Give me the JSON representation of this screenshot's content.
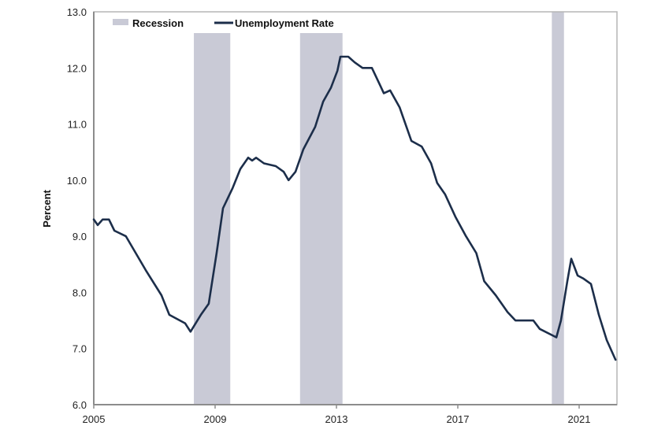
{
  "chart_data": {
    "type": "line",
    "title": "",
    "xlabel": "",
    "ylabel": "Percent",
    "ylim": [
      6.0,
      13.0
    ],
    "xlim": [
      2005,
      2022.2
    ],
    "yticks": [
      "6.0",
      "7.0",
      "8.0",
      "9.0",
      "10.0",
      "11.0",
      "12.0",
      "13.0"
    ],
    "xticks": [
      "2005",
      "2009",
      "2013",
      "2017",
      "2021"
    ],
    "grid": false,
    "legend": {
      "position": "top-left",
      "entries": [
        {
          "label": "Recession",
          "type": "area",
          "color": "#c9cad6"
        },
        {
          "label": "Unemployment Rate",
          "type": "line",
          "color": "#1c2e4a"
        }
      ]
    },
    "recessions": [
      {
        "start": 2008.3,
        "end": 2009.5
      },
      {
        "start": 2011.8,
        "end": 2013.2
      },
      {
        "start": 2020.1,
        "end": 2020.5
      }
    ],
    "series": [
      {
        "name": "Unemployment Rate",
        "color": "#1c2e4a",
        "x": [
          2005.0,
          2005.13,
          2005.29,
          2005.5,
          2005.68,
          2006.06,
          2006.71,
          2007.23,
          2007.49,
          2008.01,
          2008.19,
          2008.53,
          2008.79,
          2009.05,
          2009.26,
          2009.57,
          2009.83,
          2010.09,
          2010.22,
          2010.35,
          2010.61,
          2011.0,
          2011.26,
          2011.42,
          2011.65,
          2011.91,
          2012.3,
          2012.56,
          2012.82,
          2013.03,
          2013.13,
          2013.39,
          2013.6,
          2013.86,
          2014.17,
          2014.43,
          2014.56,
          2014.77,
          2015.08,
          2015.47,
          2015.81,
          2016.12,
          2016.32,
          2016.58,
          2016.92,
          2017.27,
          2017.61,
          2017.87,
          2018.25,
          2018.64,
          2018.9,
          2019.49,
          2019.7,
          2020.25,
          2020.4,
          2020.61,
          2020.74,
          2020.95,
          2021.13,
          2021.39,
          2021.65,
          2021.91,
          2022.2
        ],
        "values": [
          9.3,
          9.2,
          9.3,
          9.3,
          9.1,
          9.0,
          8.4,
          7.95,
          7.6,
          7.45,
          7.3,
          7.6,
          7.8,
          8.7,
          9.5,
          9.85,
          10.2,
          10.4,
          10.35,
          10.4,
          10.3,
          10.25,
          10.15,
          10.0,
          10.15,
          10.55,
          10.95,
          11.4,
          11.65,
          11.95,
          12.2,
          12.2,
          12.1,
          12.0,
          12.0,
          11.7,
          11.55,
          11.6,
          11.3,
          10.7,
          10.6,
          10.3,
          9.95,
          9.75,
          9.35,
          9.0,
          8.7,
          8.2,
          7.95,
          7.65,
          7.5,
          7.5,
          7.35,
          7.2,
          7.5,
          8.2,
          8.6,
          8.3,
          8.25,
          8.15,
          7.6,
          7.15,
          6.8
        ]
      }
    ]
  }
}
